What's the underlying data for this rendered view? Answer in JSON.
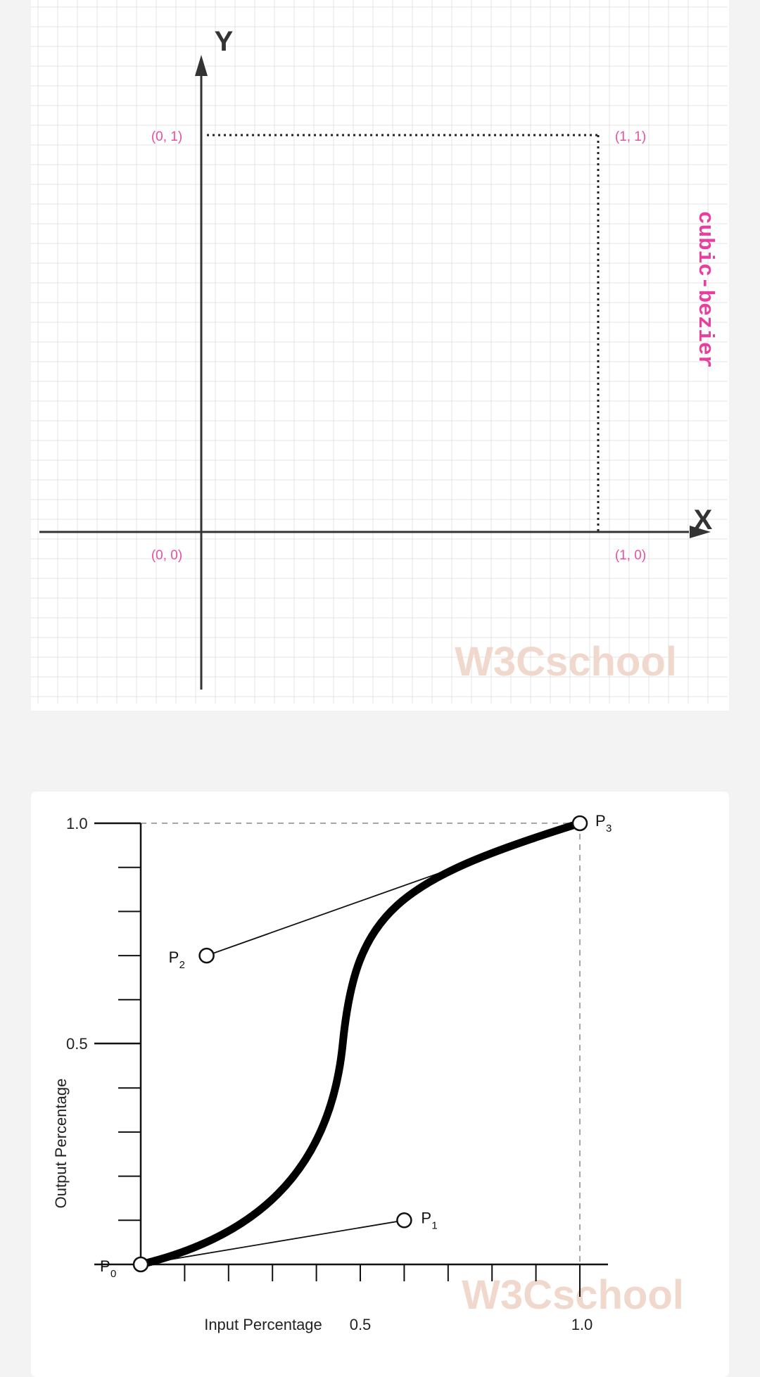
{
  "top_diagram": {
    "y_axis_title": "Y",
    "x_axis_title": "X",
    "corner_labels": {
      "origin": "(0, 0)",
      "x_one": "(1, 0)",
      "y_one": "(0, 1)",
      "xy_one": "(1, 1)"
    },
    "side_label": "cubic-bezier",
    "watermark": "W3Cschool",
    "colors": {
      "label": "#e84fa3",
      "axis": "#333333",
      "grid": "#e6e6e6"
    }
  },
  "bottom_diagram": {
    "y_ticks": {
      "top": "1.0",
      "mid": "0.5"
    },
    "x_ticks": {
      "mid": "0.5",
      "end": "1.0"
    },
    "x_axis_title": "Input Percentage",
    "y_axis_title": "Output Percentage",
    "points": [
      {
        "name": "P",
        "sub": "0",
        "x": 0,
        "y": 0
      },
      {
        "name": "P",
        "sub": "1",
        "x": 0.6,
        "y": 0.1
      },
      {
        "name": "P",
        "sub": "2",
        "x": 0.15,
        "y": 0.7
      },
      {
        "name": "P",
        "sub": "3",
        "x": 1,
        "y": 1
      }
    ],
    "watermark": "W3Cschool"
  }
}
